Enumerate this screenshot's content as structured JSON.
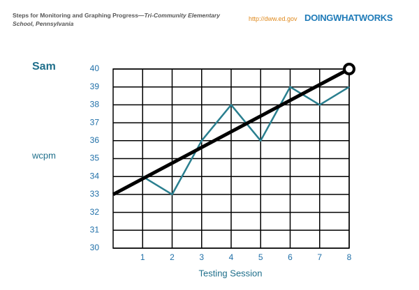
{
  "header": {
    "title": "Steps for Monitoring and Graphing Progress—",
    "title_italic": "Tri-Community Elementary School, Pennsylvania",
    "url": "http://dww.ed.gov",
    "logo": "DOINGWHATWORKS"
  },
  "chart_data": {
    "type": "line",
    "title": "Sam",
    "y_label": "wcpm",
    "x_label": "Testing Session",
    "series": [
      {
        "color": "#2a7f8f",
        "x": [
          1,
          2,
          3,
          4,
          5,
          6,
          7,
          8
        ],
        "values": [
          34,
          33,
          36,
          38,
          36,
          39,
          38,
          39
        ]
      },
      {
        "color": "#000000",
        "x": [
          0,
          8
        ],
        "values": [
          33,
          40
        ],
        "end_marker": "circle"
      }
    ],
    "xlim": [
      0,
      8
    ],
    "xticks": [
      1,
      2,
      3,
      4,
      5,
      6,
      7,
      8
    ],
    "ylim": [
      30,
      40
    ],
    "yticks": [
      30,
      31,
      32,
      33,
      34,
      35,
      36,
      37,
      38,
      39,
      40
    ],
    "grid": true
  }
}
